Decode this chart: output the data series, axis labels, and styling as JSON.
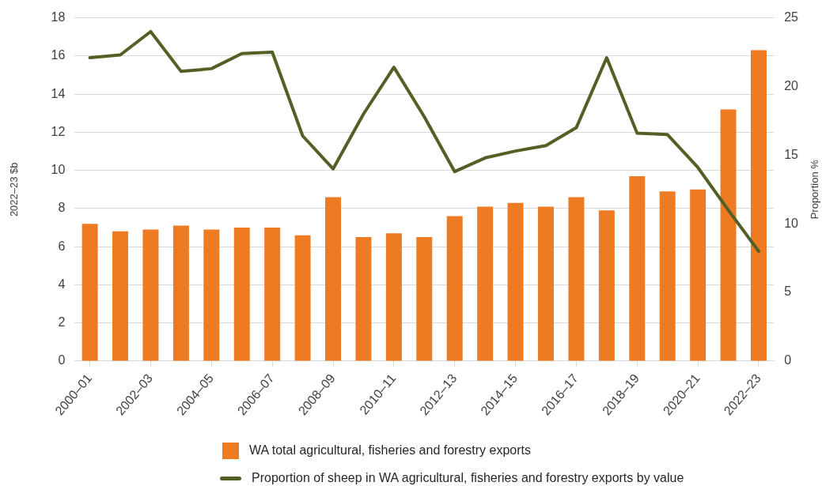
{
  "chart_data": {
    "type": "bar",
    "categories": [
      "2000–01",
      null,
      "2002–03",
      null,
      "2004–05",
      null,
      "2006–07",
      null,
      "2008–09",
      null,
      "2010–11",
      null,
      "2012–13",
      null,
      "2014–15",
      null,
      "2016–17",
      null,
      "2018–19",
      null,
      "2020–21",
      null,
      "2022–23"
    ],
    "ylabel": "2022–23 $b",
    "y2label": "Proportion %",
    "ylim": [
      0,
      18
    ],
    "yticks": [
      0,
      2,
      4,
      6,
      8,
      10,
      12,
      14,
      16,
      18
    ],
    "y2lim": [
      0,
      25
    ],
    "y2ticks": [
      0,
      5,
      10,
      15,
      20,
      25
    ],
    "grid": "y",
    "legend": "bottom",
    "marker": "none",
    "line_style": "solid",
    "series": [
      {
        "name": "WA total agricultural, fisheries and forestry exports",
        "color": "#ee7a22",
        "values": [
          7.2,
          6.8,
          6.9,
          7.1,
          6.9,
          7.0,
          7.0,
          6.6,
          8.6,
          6.5,
          6.7,
          6.5,
          7.6,
          8.1,
          8.3,
          8.1,
          8.6,
          7.9,
          9.7,
          8.9,
          9.0,
          13.2,
          16.3
        ]
      },
      {
        "name": "Proportion of sheep in WA agricultural, fisheries and forestry exports by value",
        "type": "line",
        "axis": "y2",
        "color": "#536025",
        "values": [
          22.1,
          22.3,
          24.0,
          21.1,
          21.3,
          22.4,
          22.5,
          16.4,
          14.0,
          18.0,
          21.4,
          17.8,
          13.8,
          14.8,
          15.3,
          15.7,
          17.0,
          22.1,
          16.6,
          16.5,
          14.1,
          11.0,
          8.0
        ]
      }
    ]
  }
}
